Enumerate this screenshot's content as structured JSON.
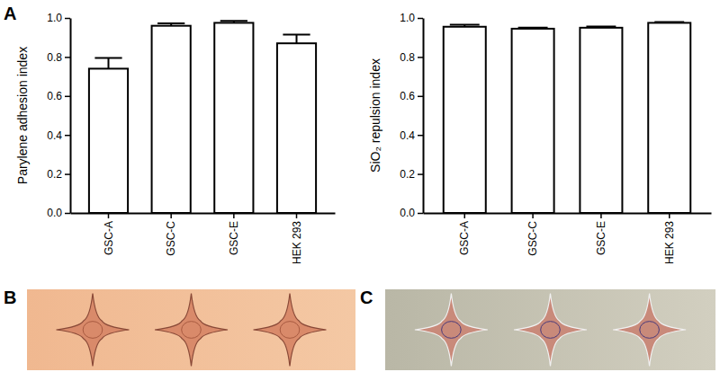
{
  "panel_labels": [
    "A",
    "B",
    "C"
  ],
  "chart_data": [
    {
      "type": "bar",
      "ylabel": "Parylene adhesion index",
      "categories": [
        "GSC-A",
        "GSC-C",
        "GSC-E",
        "HEK 293"
      ],
      "values": [
        0.74,
        0.96,
        0.975,
        0.87
      ],
      "errors": [
        0.055,
        0.012,
        0.01,
        0.045
      ],
      "color": "#ffffff",
      "ylim": [
        0,
        1
      ],
      "yticks": [
        {
          "value": 0,
          "label": "0.0"
        },
        0.2,
        0.4,
        0.6,
        0.8,
        {
          "value": 1,
          "label": "1.0"
        }
      ],
      "grid": false
    },
    {
      "type": "bar",
      "ylabel": "SiO₂ repulsion index",
      "categories": [
        "GSC-A",
        "GSC-C",
        "GSC-E",
        "HEK 293"
      ],
      "values": [
        0.955,
        0.945,
        0.95,
        0.975
      ],
      "errors": [
        0.01,
        0.005,
        0.006,
        0.004
      ],
      "color": "#ffffff",
      "ylim": [
        0,
        1
      ],
      "yticks": [
        {
          "value": 0,
          "label": "0.0"
        },
        0.2,
        0.4,
        0.6,
        0.8,
        {
          "value": 1,
          "label": "1.0"
        }
      ],
      "grid": false
    }
  ]
}
